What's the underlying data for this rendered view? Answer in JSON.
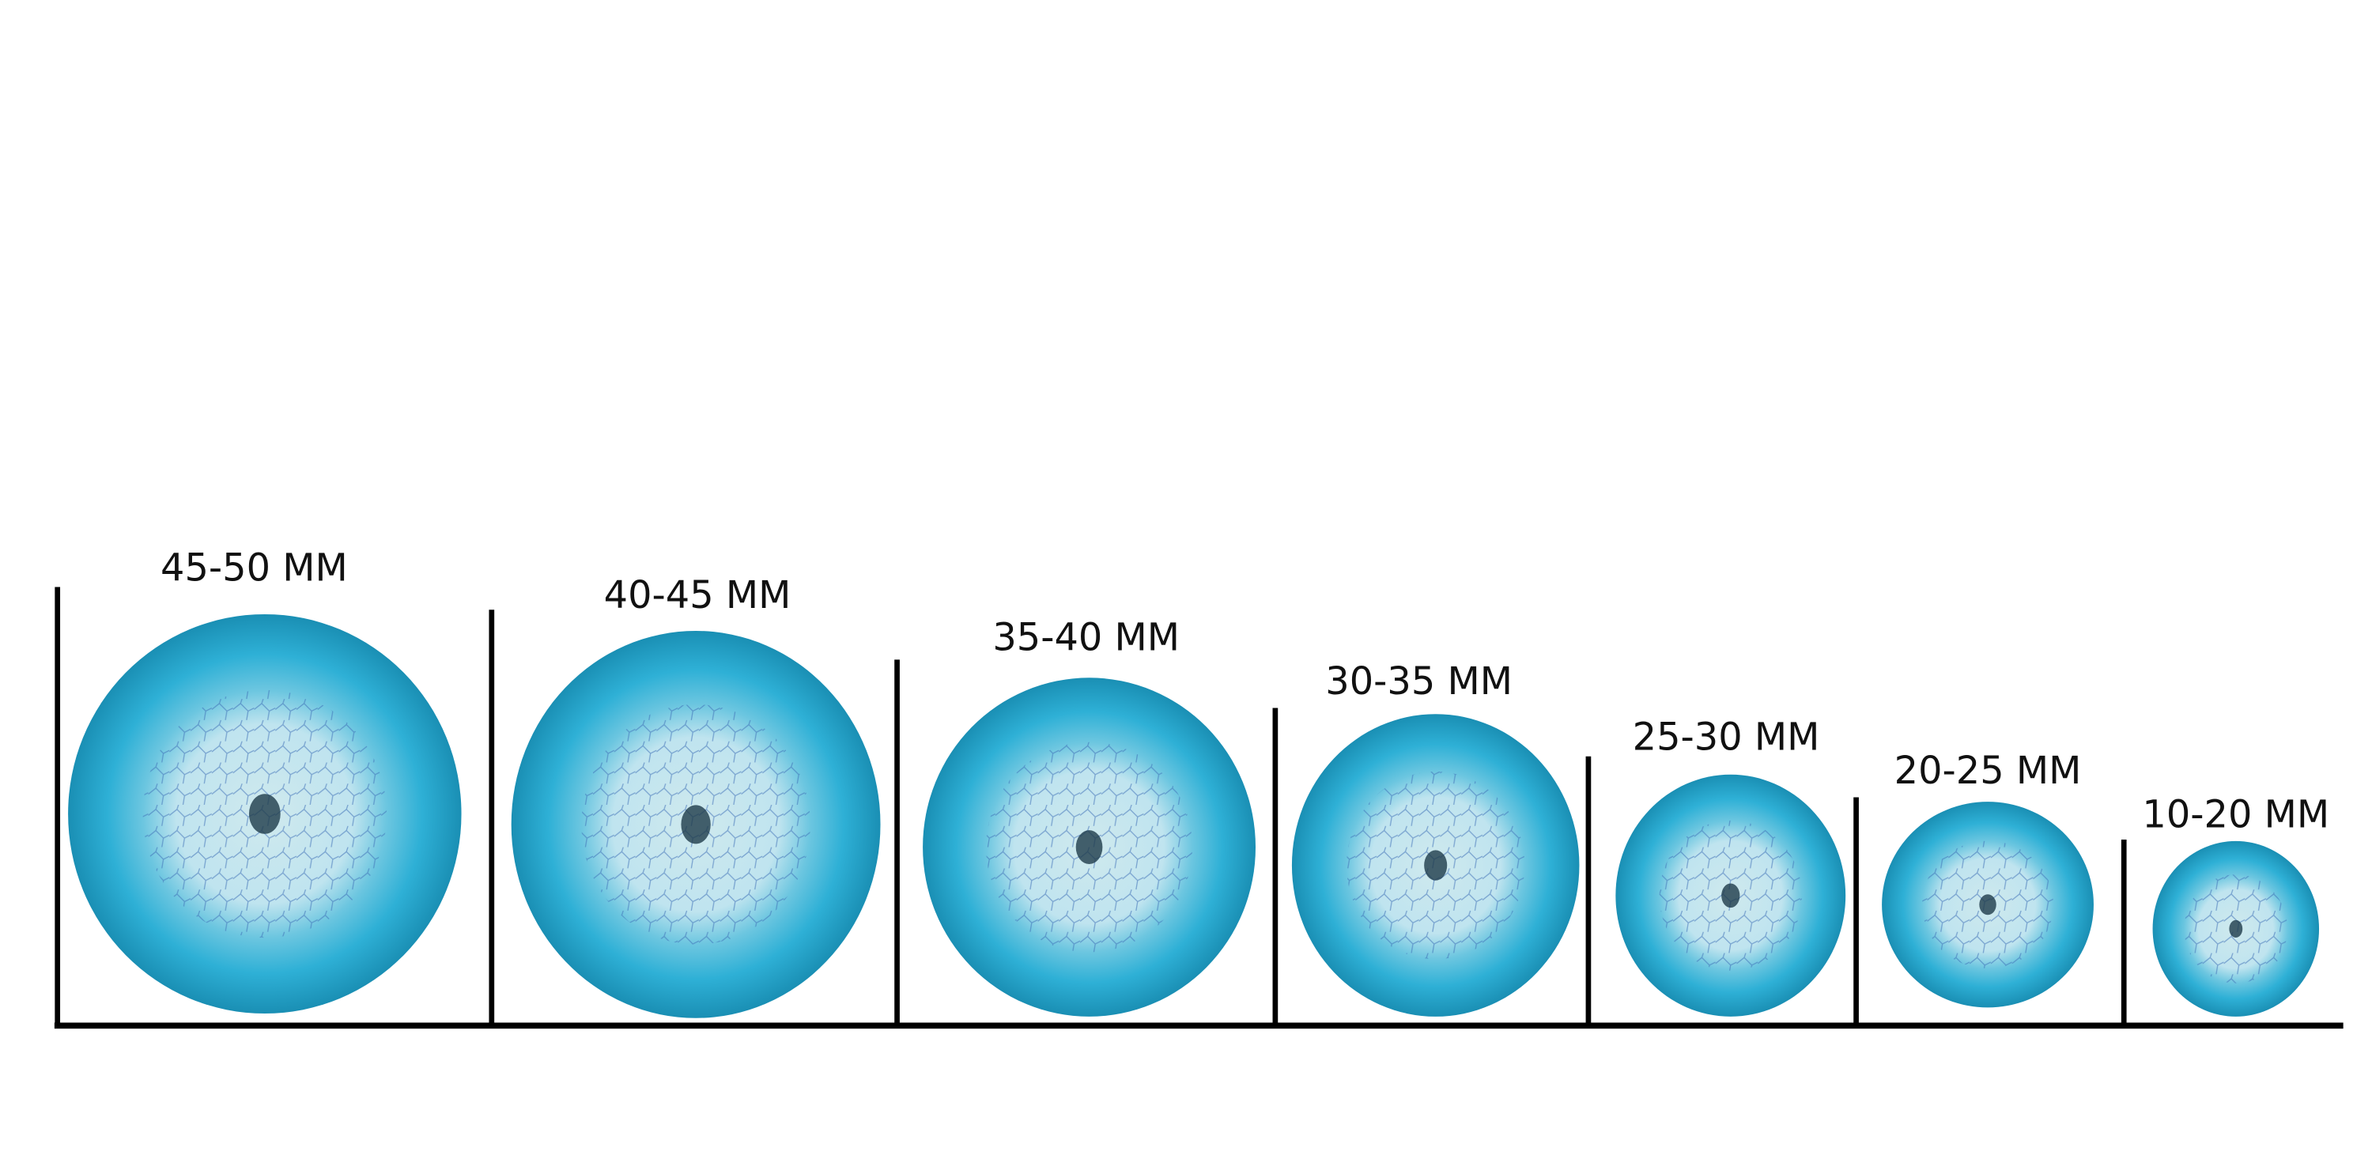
{
  "labels": [
    "45-50 MM",
    "40-45 MM",
    "35-40 MM",
    "30-35 MM",
    "25-30 MM",
    "20-25 MM",
    "10-20 MM"
  ]
}
